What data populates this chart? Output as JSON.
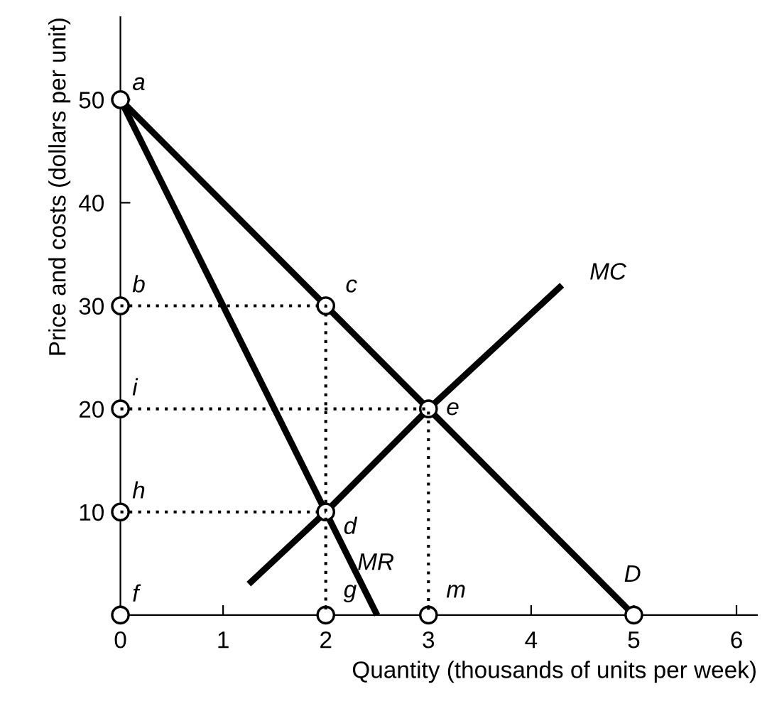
{
  "chart_data": {
    "type": "line",
    "xlabel": "Quantity (thousands of units per week)",
    "ylabel": "Price and costs (dollars per unit)",
    "xlim": [
      0,
      6.2
    ],
    "ylim": [
      0,
      58
    ],
    "xticks": [
      0,
      1,
      2,
      3,
      4,
      5,
      6
    ],
    "yticks": [
      10,
      20,
      30,
      40,
      50
    ],
    "grid": false,
    "legend": false,
    "series": [
      {
        "name": "D",
        "color": "#000000",
        "x": [
          0,
          5
        ],
        "values": [
          50,
          0
        ],
        "line_style": "solid"
      },
      {
        "name": "MR",
        "color": "#000000",
        "x": [
          0,
          2.5
        ],
        "values": [
          50,
          0
        ],
        "line_style": "solid"
      },
      {
        "name": "MC",
        "color": "#000000",
        "x": [
          1.25,
          2,
          3,
          4.3
        ],
        "values": [
          3,
          10,
          20,
          32
        ],
        "line_style": "solid"
      },
      {
        "color": "#000000",
        "x": [
          0,
          2,
          2
        ],
        "values": [
          30,
          30,
          0
        ],
        "line_style": "dotted"
      },
      {
        "color": "#000000",
        "x": [
          0,
          3,
          3
        ],
        "values": [
          20,
          20,
          0
        ],
        "line_style": "dotted"
      },
      {
        "color": "#000000",
        "x": [
          0,
          2
        ],
        "values": [
          10,
          10
        ],
        "line_style": "dotted"
      },
      {
        "type": "scatter",
        "color": "#000000",
        "marker": "circle",
        "x": [
          0,
          0,
          2,
          0,
          3,
          0,
          2,
          0,
          2,
          3,
          5
        ],
        "values": [
          50,
          30,
          30,
          20,
          20,
          10,
          10,
          0,
          0,
          0,
          0
        ]
      }
    ],
    "annotations": [
      {
        "text": "a",
        "x": 0,
        "y": 50
      },
      {
        "text": "b",
        "x": 0,
        "y": 30
      },
      {
        "text": "c",
        "x": 2,
        "y": 30
      },
      {
        "text": "i",
        "x": 0,
        "y": 20
      },
      {
        "text": "e",
        "x": 3,
        "y": 20
      },
      {
        "text": "h",
        "x": 0,
        "y": 10
      },
      {
        "text": "d",
        "x": 2,
        "y": 10
      },
      {
        "text": "f",
        "x": 0,
        "y": 0
      },
      {
        "text": "g",
        "x": 2,
        "y": 0
      },
      {
        "text": "m",
        "x": 3,
        "y": 0
      }
    ]
  }
}
